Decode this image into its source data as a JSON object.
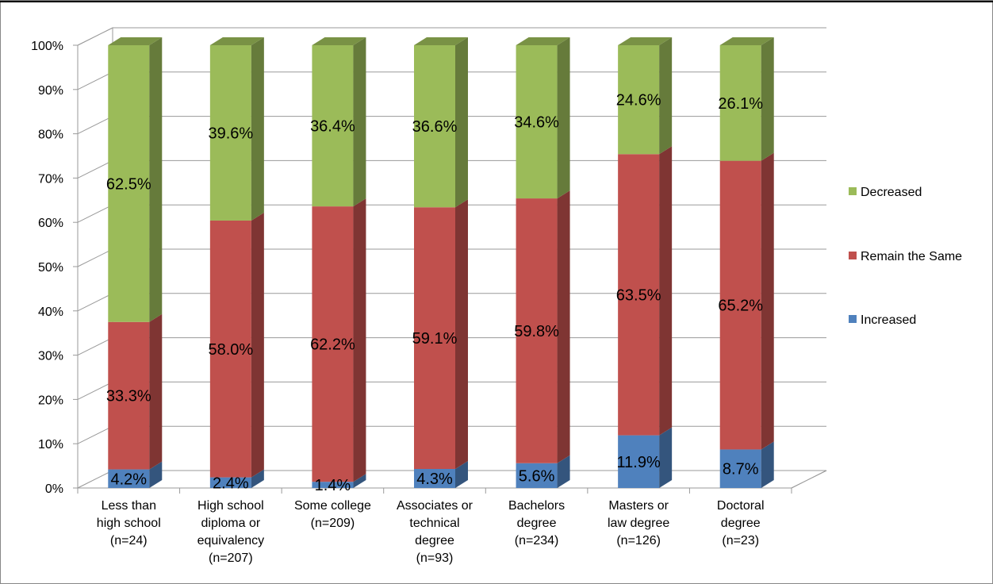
{
  "chart_data": {
    "type": "bar",
    "stacked": true,
    "percent_stacked": true,
    "three_d": true,
    "title": "",
    "xlabel": "",
    "ylabel": "",
    "ylim": [
      0,
      100
    ],
    "y_ticks": [
      "0%",
      "10%",
      "20%",
      "30%",
      "40%",
      "50%",
      "60%",
      "70%",
      "80%",
      "90%",
      "100%"
    ],
    "grid": true,
    "legend_position": "right",
    "categories": [
      [
        "Less than",
        "high school",
        "(n=24)"
      ],
      [
        "High school",
        "diploma or",
        "equivalency",
        "(n=207)"
      ],
      [
        "Some college",
        "(n=209)"
      ],
      [
        "Associates or",
        "technical",
        "degree",
        "(n=93)"
      ],
      [
        "Bachelors",
        "degree",
        "(n=234)"
      ],
      [
        "Masters or",
        "law degree",
        "(n=126)"
      ],
      [
        "Doctoral",
        "degree",
        "(n=23)"
      ]
    ],
    "series": [
      {
        "name": "Increased",
        "color": "#4F81BD",
        "values": [
          4.2,
          2.4,
          1.4,
          4.3,
          5.6,
          11.9,
          8.7
        ],
        "labels": [
          "4.2%",
          "2.4%",
          "1.4%",
          "4.3%",
          "5.6%",
          "11.9%",
          "8.7%"
        ]
      },
      {
        "name": "Remain the Same",
        "color": "#C0504D",
        "values": [
          33.3,
          58.0,
          62.2,
          59.1,
          59.8,
          63.5,
          65.2
        ],
        "labels": [
          "33.3%",
          "58.0%",
          "62.2%",
          "59.1%",
          "59.8%",
          "63.5%",
          "65.2%"
        ]
      },
      {
        "name": "Decreased",
        "color": "#9BBB59",
        "values": [
          62.5,
          39.6,
          36.4,
          36.6,
          34.6,
          24.6,
          26.1
        ],
        "labels": [
          "62.5%",
          "39.6%",
          "36.4%",
          "36.6%",
          "34.6%",
          "24.6%",
          "26.1%"
        ]
      }
    ],
    "legend_order": [
      "Decreased",
      "Remain the Same",
      "Increased"
    ]
  }
}
